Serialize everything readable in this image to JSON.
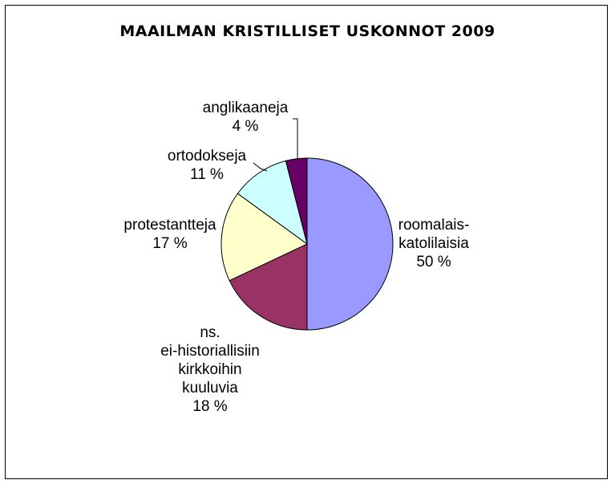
{
  "chart_data": {
    "type": "pie",
    "title": "MAAILMAN KRISTILLISET USKONNOT 2009",
    "legend": "none",
    "start_angle_deg": 0,
    "direction": "clockwise",
    "slices": [
      {
        "lines": [
          "roomalais-",
          "katolilaisia",
          "50 %"
        ],
        "value": 50,
        "color": "#9999ff"
      },
      {
        "lines": [
          "ns.",
          "ei-historiallisiin",
          "kirkkoihin",
          "kuuluvia",
          "18 %"
        ],
        "value": 18,
        "color": "#993366"
      },
      {
        "lines": [
          "protestantteja",
          "17 %"
        ],
        "value": 17,
        "color": "#ffffcc"
      },
      {
        "lines": [
          "ortodokseja",
          "11 %"
        ],
        "value": 11,
        "color": "#ccffff"
      },
      {
        "lines": [
          "anglikaaneja",
          "4 %"
        ],
        "value": 4,
        "color": "#660066"
      }
    ]
  }
}
